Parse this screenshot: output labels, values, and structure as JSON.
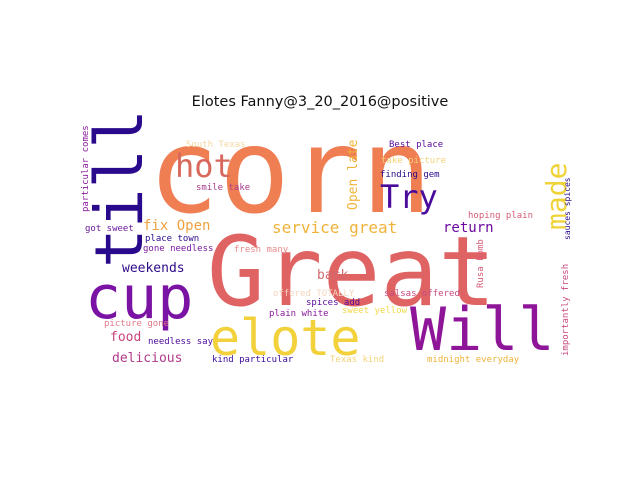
{
  "title": "Elotes Fanny@3_20_2016@positive",
  "palette": "plasma",
  "words": [
    {
      "text": "corn",
      "color": "#ef7e53"
    },
    {
      "text": "Great",
      "color": "#e06363"
    },
    {
      "text": "till",
      "color": "#2a0a8c"
    },
    {
      "text": "cup",
      "color": "#7a12a3"
    },
    {
      "text": "elote",
      "color": "#f2d13a"
    },
    {
      "text": "Will",
      "color": "#8e1598"
    },
    {
      "text": "hot",
      "color": "#d9685c"
    },
    {
      "text": "Try",
      "color": "#4a0a9c"
    },
    {
      "text": "made",
      "color": "#f0d338"
    },
    {
      "text": "service great",
      "color": "#f0b33a"
    },
    {
      "text": "Open late",
      "color": "#f0b33a"
    },
    {
      "text": "fix Open",
      "color": "#efa23f"
    },
    {
      "text": "return",
      "color": "#6a0aa0"
    },
    {
      "text": "weekends",
      "color": "#2e0b8a"
    },
    {
      "text": "back",
      "color": "#d06a70"
    },
    {
      "text": "food",
      "color": "#c8437a"
    },
    {
      "text": "delicious",
      "color": "#b23a8a"
    },
    {
      "text": "particular comes",
      "color": "#8a1a9c"
    },
    {
      "text": "South Texas",
      "color": "#f4d8a0"
    },
    {
      "text": "Best place",
      "color": "#5a0a9c"
    },
    {
      "text": "take picture",
      "color": "#f4d27a"
    },
    {
      "text": "finding gem",
      "color": "#2a0a8c"
    },
    {
      "text": "smile take",
      "color": "#a83a8a"
    },
    {
      "text": "hoping plain",
      "color": "#d65a78"
    },
    {
      "text": "sauces spices",
      "color": "#2a0a8c"
    },
    {
      "text": "got sweet",
      "color": "#6a1a9c"
    },
    {
      "text": "place town",
      "color": "#2a0a8c"
    },
    {
      "text": "gone needless",
      "color": "#7a1aa0"
    },
    {
      "text": "fresh many",
      "color": "#e88a8a"
    },
    {
      "text": "salsas offered",
      "color": "#c84a80"
    },
    {
      "text": "Rusa bomb",
      "color": "#d65a78"
    },
    {
      "text": "importantly fresh",
      "color": "#c84a80"
    },
    {
      "text": "spices add",
      "color": "#5a0a9c"
    },
    {
      "text": "sweet yellow",
      "color": "#f2d84a"
    },
    {
      "text": "plain white",
      "color": "#8a1a9c"
    },
    {
      "text": "offered TOTALLY",
      "color": "#f4d6c0"
    },
    {
      "text": "picture gone",
      "color": "#e07a8a"
    },
    {
      "text": "needless say",
      "color": "#4a0a9c"
    },
    {
      "text": "kind particular",
      "color": "#3a0a9c"
    },
    {
      "text": "Texas kind",
      "color": "#f4d27a"
    },
    {
      "text": "midnight everyday",
      "color": "#f0b33a"
    }
  ]
}
